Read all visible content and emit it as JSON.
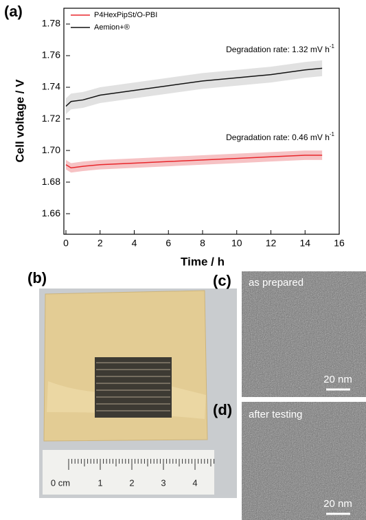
{
  "chart_data": {
    "type": "line",
    "title": "(a)",
    "xlabel": "Time / h",
    "ylabel": "Cell voltage / V",
    "x": [
      0,
      0.3,
      1,
      2,
      4,
      6,
      8,
      10,
      12,
      14,
      15
    ],
    "series": [
      {
        "name": "P4HexPipSt/O-PBI",
        "color": "#e8262b",
        "band_color": "#f4b3b5",
        "values": [
          1.691,
          1.689,
          1.69,
          1.691,
          1.692,
          1.693,
          1.694,
          1.695,
          1.696,
          1.697,
          1.697
        ],
        "errors": [
          0.003,
          0.003,
          0.003,
          0.003,
          0.003,
          0.003,
          0.003,
          0.003,
          0.003,
          0.003,
          0.003
        ]
      },
      {
        "name": "Aemion+®",
        "color": "#111111",
        "band_color": "#d9d9d9",
        "values": [
          1.728,
          1.731,
          1.732,
          1.735,
          1.738,
          1.741,
          1.744,
          1.746,
          1.748,
          1.751,
          1.752
        ],
        "errors": [
          0.005,
          0.005,
          0.005,
          0.005,
          0.005,
          0.005,
          0.005,
          0.005,
          0.005,
          0.005,
          0.005
        ]
      }
    ],
    "annotations": [
      {
        "text": "Degradation rate: 1.32 mV h",
        "sup": "-1",
        "color": "#111111"
      },
      {
        "text": "Degradation rate: 0.46 mV h",
        "sup": "-1",
        "color": "#e8262b"
      }
    ],
    "xlim": [
      0,
      16
    ],
    "xticks": [
      0,
      2,
      4,
      6,
      8,
      10,
      12,
      14,
      16
    ],
    "ylim": [
      1.647,
      1.79
    ],
    "yticks": [
      {
        "value": 1.66,
        "label": "1.66"
      },
      {
        "value": 1.68,
        "label": "1.68"
      },
      {
        "value": 1.7,
        "label": "1.70"
      },
      {
        "value": 1.72,
        "label": "1.72"
      },
      {
        "value": 1.74,
        "label": "1.74"
      },
      {
        "value": 1.76,
        "label": "1.76"
      },
      {
        "value": 1.78,
        "label": "1.78"
      }
    ],
    "legend": "upper left"
  },
  "panels": {
    "b": {
      "label": "(b)",
      "ruler": [
        "0 cm",
        "1",
        "2",
        "3",
        "4"
      ]
    },
    "c": {
      "label": "(c)",
      "caption": "as prepared",
      "scale": "20 nm"
    },
    "d": {
      "label": "(d)",
      "caption": "after testing",
      "scale": "20 nm"
    }
  }
}
